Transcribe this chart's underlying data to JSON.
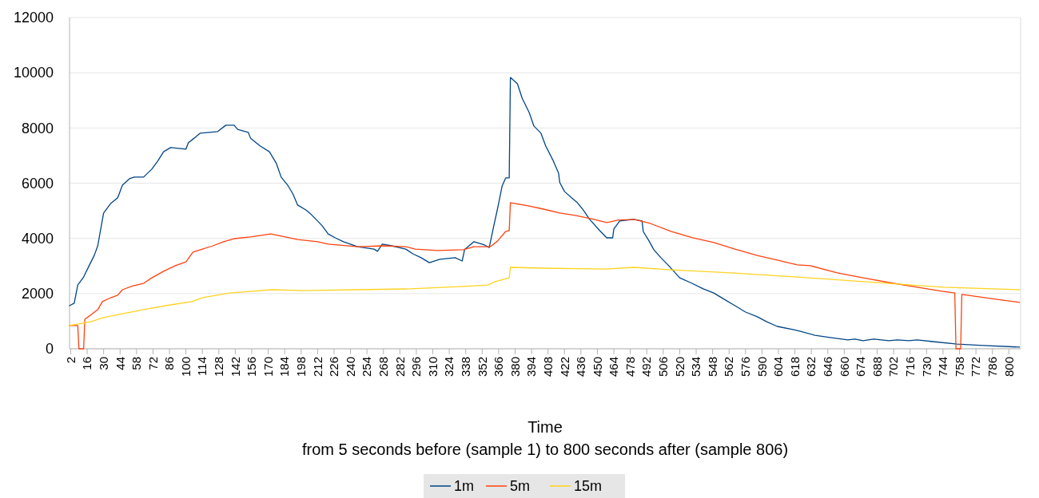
{
  "chart_data": {
    "type": "line",
    "xlabel": "Time",
    "annotations": [
      "from 5 seconds before (sample 1) to 800 seconds after (sample 806)"
    ],
    "xlim": [
      1,
      810
    ],
    "xticks": [
      2,
      16,
      30,
      44,
      58,
      72,
      86,
      100,
      114,
      128,
      142,
      156,
      170,
      184,
      198,
      212,
      226,
      240,
      254,
      268,
      282,
      296,
      310,
      324,
      338,
      352,
      366,
      380,
      394,
      408,
      422,
      436,
      450,
      464,
      478,
      492,
      506,
      520,
      534,
      548,
      562,
      576,
      590,
      604,
      618,
      632,
      646,
      660,
      674,
      688,
      702,
      716,
      730,
      744,
      758,
      772,
      786,
      800
    ],
    "ylim": [
      0,
      12000
    ],
    "yticks": [
      0,
      2000,
      4000,
      6000,
      8000,
      10000,
      12000
    ],
    "grid": "y",
    "legend": "bottom",
    "marker": "none",
    "line_style": "solid",
    "series": [
      {
        "name": "1m",
        "color": "#004586",
        "x": [
          1,
          5,
          8,
          13,
          18,
          22,
          25,
          28,
          30,
          36,
          42,
          46,
          52,
          56,
          64,
          71,
          76,
          81,
          87,
          100,
          102,
          107,
          112,
          127,
          134,
          141,
          144,
          153,
          155,
          163,
          171,
          177,
          181,
          187,
          191,
          195,
          202,
          206,
          212,
          216,
          221,
          227,
          234,
          246,
          260,
          263,
          267,
          275,
          287,
          293,
          300,
          307,
          316,
          329,
          335,
          337,
          345,
          354,
          358,
          362,
          365,
          369,
          372,
          375,
          376,
          382,
          386,
          392,
          396,
          402,
          406,
          412,
          417,
          418,
          422,
          428,
          433,
          438,
          443,
          452,
          458,
          463,
          464,
          469,
          481,
          488,
          489,
          494,
          498,
          504,
          510,
          515,
          520,
          529,
          540,
          549,
          558,
          567,
          576,
          586,
          594,
          603,
          617,
          622,
          635,
          649,
          663,
          669,
          676,
          685,
          698,
          705,
          715,
          722,
          735,
          756,
          778,
          809
        ],
        "values": [
          1560,
          1650,
          2310,
          2600,
          3040,
          3380,
          3730,
          4450,
          4920,
          5260,
          5470,
          5930,
          6160,
          6220,
          6220,
          6510,
          6800,
          7140,
          7290,
          7230,
          7460,
          7630,
          7810,
          7870,
          8100,
          8100,
          7950,
          7840,
          7630,
          7350,
          7140,
          6710,
          6220,
          5900,
          5610,
          5210,
          5030,
          4890,
          4630,
          4450,
          4160,
          4020,
          3880,
          3700,
          3610,
          3530,
          3790,
          3730,
          3610,
          3440,
          3300,
          3120,
          3240,
          3300,
          3180,
          3590,
          3880,
          3760,
          3670,
          4480,
          5060,
          5900,
          6190,
          6190,
          9830,
          9600,
          9080,
          8560,
          8070,
          7810,
          7350,
          6850,
          6360,
          6020,
          5700,
          5470,
          5290,
          5030,
          4710,
          4280,
          4020,
          4020,
          4340,
          4630,
          4690,
          4630,
          4250,
          3900,
          3590,
          3300,
          3040,
          2810,
          2570,
          2400,
          2170,
          2020,
          1790,
          1560,
          1330,
          1160,
          980,
          810,
          690,
          640,
          490,
          400,
          320,
          350,
          290,
          350,
          290,
          320,
          290,
          320,
          260,
          170,
          120,
          60
        ]
      },
      {
        "name": "5m",
        "color": "#ff420e",
        "x": [
          1,
          8,
          9,
          13,
          14,
          18,
          25,
          29,
          36,
          42,
          46,
          55,
          64,
          71,
          81,
          91,
          100,
          106,
          114,
          123,
          132,
          141,
          155,
          172,
          178,
          195,
          212,
          221,
          246,
          268,
          287,
          295,
          314,
          336,
          345,
          359,
          365,
          372,
          375,
          376,
          391,
          404,
          418,
          431,
          445,
          458,
          467,
          481,
          495,
          513,
          531,
          549,
          567,
          586,
          603,
          620,
          631,
          654,
          676,
          698,
          722,
          744,
          754,
          755,
          759,
          760,
          785,
          809
        ],
        "values": [
          840,
          840,
          0,
          0,
          1070,
          1190,
          1420,
          1710,
          1850,
          1940,
          2140,
          2280,
          2370,
          2570,
          2810,
          3010,
          3150,
          3500,
          3610,
          3730,
          3880,
          3990,
          4050,
          4160,
          4110,
          3960,
          3880,
          3790,
          3700,
          3730,
          3700,
          3610,
          3560,
          3590,
          3700,
          3700,
          3900,
          4250,
          4280,
          5290,
          5180,
          5060,
          4920,
          4830,
          4710,
          4570,
          4660,
          4690,
          4540,
          4250,
          4020,
          3850,
          3610,
          3380,
          3210,
          3040,
          3010,
          2750,
          2570,
          2400,
          2230,
          2080,
          2020,
          0,
          0,
          1970,
          1820,
          1680
        ]
      },
      {
        "name": "15m",
        "color": "#ffd320",
        "x": [
          1,
          19,
          30,
          46,
          64,
          87,
          105,
          114,
          137,
          155,
          173,
          200,
          246,
          291,
          336,
          357,
          363,
          375,
          376,
          404,
          458,
          481,
          513,
          563,
          620,
          676,
          744,
          809
        ],
        "values": [
          840,
          980,
          1130,
          1270,
          1420,
          1590,
          1710,
          1850,
          2020,
          2080,
          2140,
          2110,
          2140,
          2170,
          2260,
          2310,
          2430,
          2570,
          2950,
          2920,
          2890,
          2950,
          2860,
          2750,
          2600,
          2430,
          2230,
          2140
        ]
      }
    ]
  }
}
